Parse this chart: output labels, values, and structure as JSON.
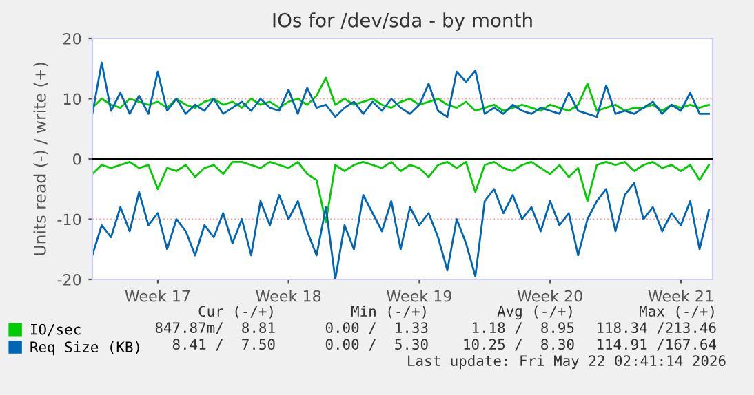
{
  "chart_data": {
    "type": "line",
    "title": "IOs for /dev/sda - by month",
    "ylabel": "Units read (-) / write (+)",
    "categories": [
      null,
      null,
      null,
      null,
      null,
      null,
      null,
      "Week 17",
      null,
      null,
      null,
      null,
      null,
      null,
      null,
      null,
      null,
      null,
      null,
      null,
      null,
      "Week 18",
      null,
      null,
      null,
      null,
      null,
      null,
      null,
      null,
      null,
      null,
      null,
      null,
      null,
      "Week 19",
      null,
      null,
      null,
      null,
      null,
      null,
      null,
      null,
      null,
      null,
      null,
      null,
      null,
      "Week 20",
      null,
      null,
      null,
      null,
      null,
      null,
      null,
      null,
      null,
      null,
      null,
      null,
      null,
      "Week 21",
      null,
      null,
      null
    ],
    "series": [
      {
        "name": "IO/sec",
        "color": "#00cc00",
        "values": [
          8.5,
          10,
          9,
          8.5,
          10,
          9.5,
          9,
          9.5,
          8.5,
          10,
          9,
          8.5,
          9.5,
          10,
          9,
          9.5,
          8.5,
          10,
          9,
          9.5,
          8.5,
          9.5,
          10,
          9,
          10.5,
          13.5,
          9,
          10,
          9,
          9.5,
          10,
          9,
          8.5,
          9.5,
          10,
          9,
          9.5,
          10,
          9,
          8.5,
          9.5,
          8,
          8.5,
          9,
          8,
          8.5,
          9,
          8.5,
          8,
          9,
          8.5,
          8,
          9,
          12.5,
          8,
          8.5,
          9,
          8,
          8.5,
          8.5,
          9,
          8,
          9,
          8.5,
          9,
          8.5,
          9
        ]
      },
      {
        "color": "#00cc00",
        "values": [
          -2.5,
          -1,
          -1.5,
          -1,
          -0.5,
          -1.5,
          -1,
          -5,
          -1.5,
          -2,
          -1,
          -3,
          -1.5,
          -1,
          -2.5,
          -0.5,
          -0.5,
          -1,
          -1.5,
          -0.5,
          -1,
          -1.5,
          -0.5,
          -2.5,
          -3.5,
          -10.5,
          -1,
          -2,
          -1,
          -0.5,
          -1,
          -1.5,
          -0.5,
          -2,
          -1,
          -1.5,
          -3,
          -1,
          -0.5,
          -1.5,
          -0.5,
          -5.5,
          -1,
          -0.5,
          -1.5,
          -2,
          -1,
          -0.5,
          -1.5,
          -2.5,
          -1,
          -3,
          -1.5,
          -7,
          -1,
          -0.5,
          -1,
          -0.5,
          -2,
          -1,
          -0.5,
          -1.5,
          -1,
          -2,
          -1,
          -3.5,
          -1
        ]
      },
      {
        "name": "Req Size (KB)",
        "color": "#0066b3",
        "values": [
          7.5,
          16,
          8,
          11,
          7.5,
          10.5,
          7.5,
          14.5,
          8,
          10,
          7.5,
          9,
          8,
          10,
          7.5,
          8.5,
          9.5,
          8,
          10,
          8.5,
          8,
          11.5,
          7.5,
          11.8,
          8.5,
          9,
          7,
          8.5,
          9.5,
          7.5,
          9.5,
          8,
          10,
          8.5,
          7.5,
          9,
          12.5,
          8,
          7,
          14.5,
          12.8,
          14.7,
          7.5,
          8.5,
          7.5,
          9,
          8,
          7.5,
          8.5,
          8,
          7.5,
          11,
          8,
          7.5,
          7,
          12.2,
          7.5,
          8,
          7.5,
          8.5,
          9.5,
          7.5,
          9,
          8,
          11,
          7.5,
          7.5
        ]
      },
      {
        "color": "#0066b3",
        "values": [
          -16,
          -11,
          -13,
          -8,
          -12,
          -5.5,
          -11,
          -9,
          -15,
          -10,
          -12,
          -16,
          -11,
          -13,
          -9,
          -14,
          -10,
          -16,
          -7,
          -11,
          -6,
          -10,
          -7,
          -12,
          -16,
          -8,
          -20,
          -11,
          -15,
          -6,
          -9,
          -12,
          -7,
          -15,
          -8,
          -11,
          -9,
          -13,
          -18.5,
          -10,
          -14,
          -19.5,
          -7,
          -5,
          -9,
          -6,
          -10,
          -8,
          -12,
          -7,
          -11,
          -9,
          -16,
          -10,
          -7,
          -5,
          -12,
          -6,
          -4,
          -10,
          -8,
          -12,
          -9,
          -11,
          -7,
          -15,
          -8.5
        ]
      }
    ],
    "ylim": [
      -20,
      20
    ],
    "yticks": [
      -20,
      -10,
      0,
      10,
      20
    ],
    "ref_lines": [
      {
        "axis": "y",
        "value": 0,
        "color": "#000000"
      }
    ],
    "grid": "y",
    "legend": "bottom",
    "marker": "none",
    "line_style": "solid",
    "annotations": [
      "Cur (-/+)",
      "Min (-/+)",
      "Avg (-/+)",
      "Max (-/+)",
      "847.87m/  8.81",
      "0.00 /  1.33",
      "1.18 /  8.95",
      "118.34 /213.46",
      "8.41 /  7.50",
      "0.00 /  5.30",
      "10.25 /  8.30",
      "114.91 /167.64",
      "Last update: Fri May 22 02:41:14 2026"
    ]
  }
}
